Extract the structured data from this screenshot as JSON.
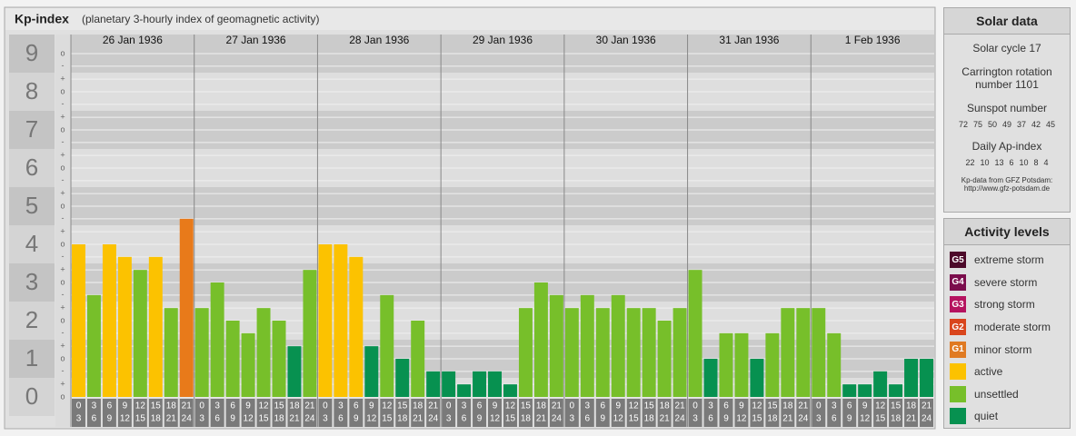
{
  "chart_data": {
    "type": "bar",
    "title": "Kp-index",
    "subtitle": "(planetary 3-hourly index of geomagnetic activity)",
    "days": [
      "26 Jan 1936",
      "27 Jan 1936",
      "28 Jan 1936",
      "29 Jan 1936",
      "30 Jan 1936",
      "31 Jan 1936",
      "1 Feb 1936"
    ],
    "hour_ranges": [
      [
        0,
        3
      ],
      [
        3,
        6
      ],
      [
        6,
        9
      ],
      [
        9,
        12
      ],
      [
        12,
        15
      ],
      [
        15,
        18
      ],
      [
        18,
        21
      ],
      [
        21,
        24
      ]
    ],
    "values": [
      4,
      2.67,
      4,
      3.67,
      3.33,
      3.67,
      2.33,
      4.67,
      2.33,
      3,
      2,
      1.67,
      2.33,
      2,
      1.33,
      3.33,
      4,
      4,
      3.67,
      1.33,
      2.67,
      1,
      2,
      0.67,
      0.67,
      0.33,
      0.67,
      0.67,
      0.33,
      2.33,
      3,
      2.67,
      2.33,
      2.67,
      2.33,
      2.67,
      2.33,
      2.33,
      2,
      2.33,
      3.33,
      1,
      1.67,
      1.67,
      1,
      1.67,
      2.33,
      2.33,
      2.33,
      1.67,
      0.33,
      0.33,
      0.67,
      0.33,
      1,
      1
    ],
    "colors": [
      "#fcc200",
      "#77bf2a",
      "#fcc200",
      "#fcc200",
      "#77bf2a",
      "#fcc200",
      "#77bf2a",
      "#e87a1a",
      "#77bf2a",
      "#77bf2a",
      "#77bf2a",
      "#77bf2a",
      "#77bf2a",
      "#77bf2a",
      "#079150",
      "#77bf2a",
      "#fcc200",
      "#fcc200",
      "#fcc200",
      "#079150",
      "#77bf2a",
      "#079150",
      "#77bf2a",
      "#079150",
      "#079150",
      "#079150",
      "#079150",
      "#079150",
      "#079150",
      "#77bf2a",
      "#77bf2a",
      "#77bf2a",
      "#77bf2a",
      "#77bf2a",
      "#77bf2a",
      "#77bf2a",
      "#77bf2a",
      "#77bf2a",
      "#77bf2a",
      "#77bf2a",
      "#77bf2a",
      "#079150",
      "#77bf2a",
      "#77bf2a",
      "#079150",
      "#77bf2a",
      "#77bf2a",
      "#77bf2a",
      "#77bf2a",
      "#77bf2a",
      "#079150",
      "#079150",
      "#079150",
      "#079150",
      "#079150",
      "#079150"
    ],
    "ylim": [
      0,
      9.5
    ],
    "yticks": [
      0,
      1,
      2,
      3,
      4,
      5,
      6,
      7,
      8,
      9
    ],
    "minor_yticks": [
      {
        "value": 0,
        "label": "o"
      },
      {
        "value": 0.33,
        "label": "+"
      },
      {
        "value": 0.67,
        "label": "-"
      },
      {
        "value": 1,
        "label": "o"
      },
      {
        "value": 1.33,
        "label": "+"
      },
      {
        "value": 1.67,
        "label": "-"
      },
      {
        "value": 2,
        "label": "o"
      },
      {
        "value": 2.33,
        "label": "+"
      },
      {
        "value": 2.67,
        "label": "-"
      },
      {
        "value": 3,
        "label": "o"
      },
      {
        "value": 3.33,
        "label": "+"
      },
      {
        "value": 3.67,
        "label": "-"
      },
      {
        "value": 4,
        "label": "o"
      },
      {
        "value": 4.33,
        "label": "+"
      },
      {
        "value": 4.67,
        "label": "-"
      },
      {
        "value": 5,
        "label": "o"
      },
      {
        "value": 5.33,
        "label": "+"
      },
      {
        "value": 5.67,
        "label": "-"
      },
      {
        "value": 6,
        "label": "o"
      },
      {
        "value": 6.33,
        "label": "+"
      },
      {
        "value": 6.67,
        "label": "-"
      },
      {
        "value": 7,
        "label": "o"
      },
      {
        "value": 7.33,
        "label": "+"
      },
      {
        "value": 7.67,
        "label": "-"
      },
      {
        "value": 8,
        "label": "o"
      },
      {
        "value": 8.33,
        "label": "+"
      },
      {
        "value": 8.67,
        "label": "-"
      },
      {
        "value": 9,
        "label": "o"
      }
    ],
    "grid": true
  },
  "solar_data": {
    "title": "Solar data",
    "cycle": "Solar cycle 17",
    "carrington": "Carrington rotation number 1101",
    "sunspot_label": "Sunspot number",
    "sunspot_numbers": [
      72,
      75,
      50,
      49,
      37,
      42,
      45
    ],
    "ap_label": "Daily Ap-index",
    "ap_values": [
      22,
      10,
      13,
      6,
      10,
      8,
      4
    ],
    "source": "Kp-data from GFZ Potsdam:",
    "url": "http://www.gfz-potsdam.de"
  },
  "activity_levels": {
    "title": "Activity levels",
    "items": [
      {
        "badge": "G5",
        "label": "extreme storm",
        "color": "#4d0a2a"
      },
      {
        "badge": "G4",
        "label": "severe storm",
        "color": "#7b0d4c"
      },
      {
        "badge": "G3",
        "label": "strong storm",
        "color": "#b5135f"
      },
      {
        "badge": "G2",
        "label": "moderate storm",
        "color": "#d9451c"
      },
      {
        "badge": "G1",
        "label": "minor storm",
        "color": "#e07a22"
      },
      {
        "label": "active",
        "color": "#fcc200"
      },
      {
        "label": "unsettled",
        "color": "#77bf2a"
      },
      {
        "label": "quiet",
        "color": "#079150"
      }
    ]
  }
}
